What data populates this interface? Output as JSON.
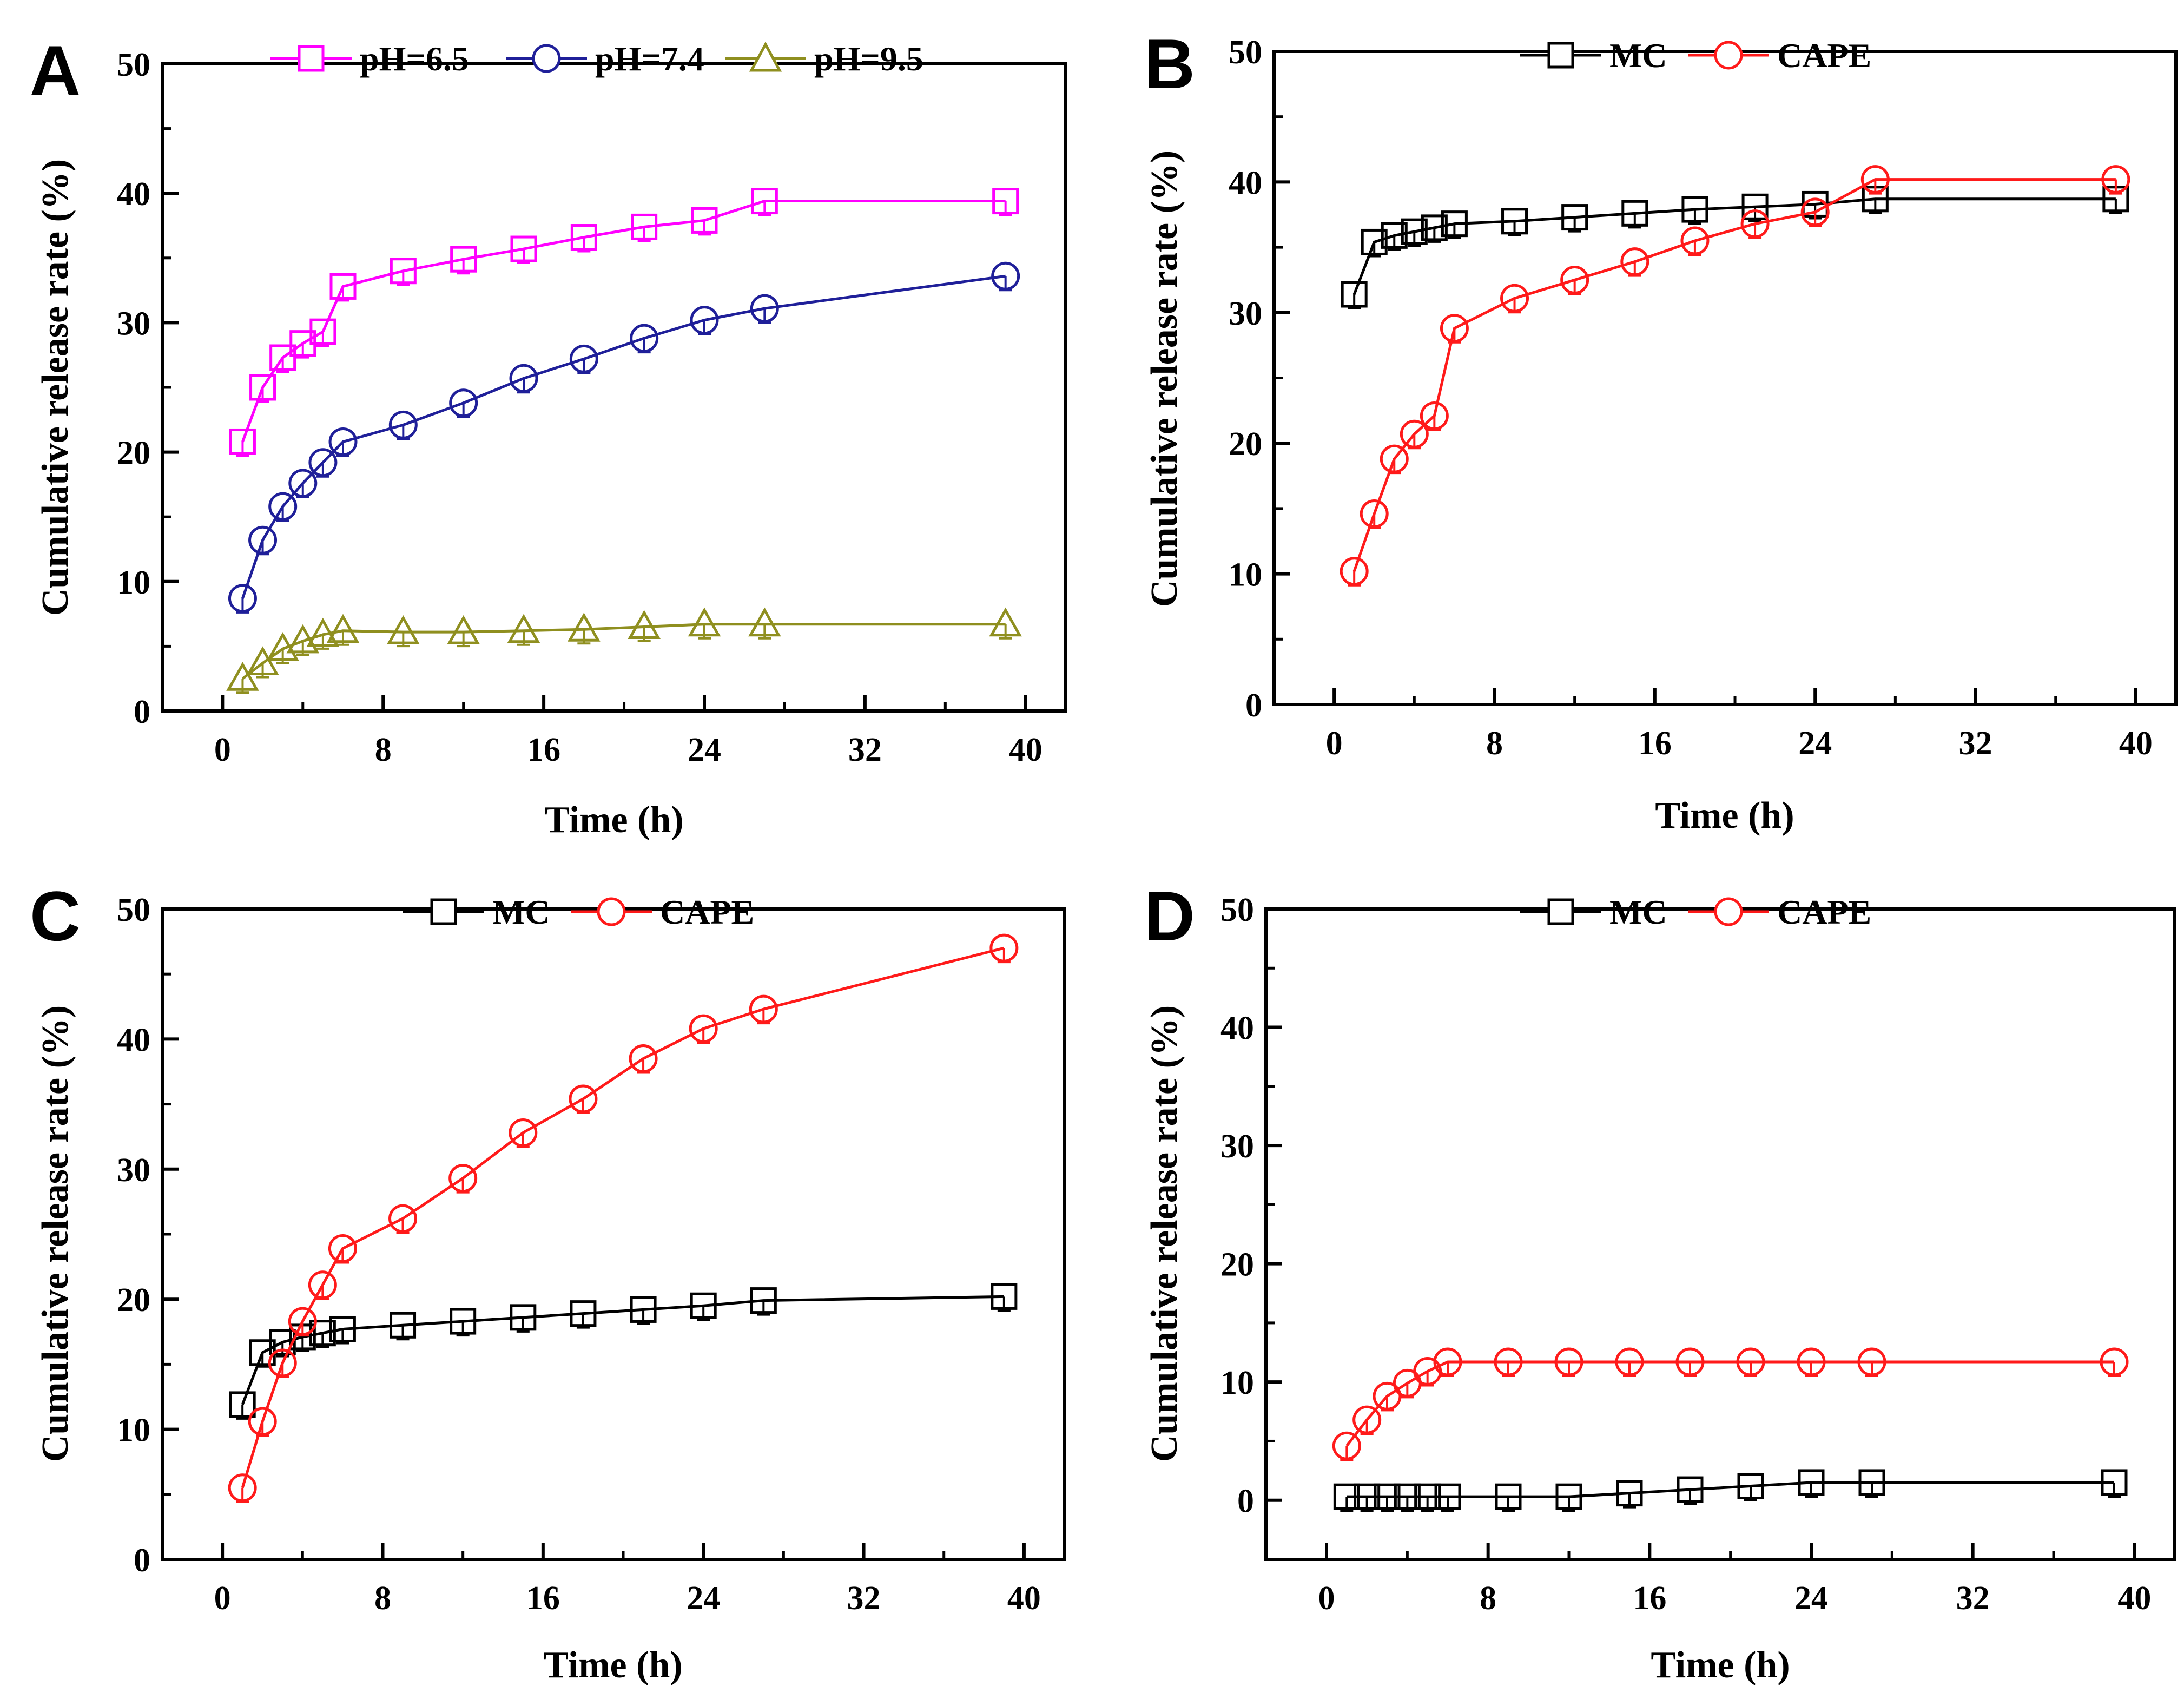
{
  "chart_data": [
    {
      "panel": "A",
      "type": "line",
      "xlabel": "Time (h)",
      "ylabel": "Cumulative release rate (%)",
      "xlim": [
        -3,
        42
      ],
      "ylim": [
        0,
        50
      ],
      "xticks": [
        0,
        8,
        16,
        24,
        32,
        40
      ],
      "yticks": [
        0,
        10,
        20,
        30,
        40,
        50
      ],
      "x": [
        1,
        2,
        3,
        4,
        5,
        6,
        9,
        12,
        15,
        18,
        21,
        24,
        27,
        39
      ],
      "series": [
        {
          "name": "pH=6.5",
          "color": "#ff00ff",
          "marker": "square",
          "values": [
            20.8,
            25.0,
            27.3,
            28.4,
            29.3,
            32.8,
            34.0,
            34.9,
            35.7,
            36.6,
            37.4,
            37.9,
            39.4,
            39.4
          ]
        },
        {
          "name": "pH=7.4",
          "color": "#1f1f99",
          "marker": "circle",
          "values": [
            8.7,
            13.2,
            15.8,
            17.6,
            19.2,
            20.8,
            22.1,
            23.8,
            25.7,
            27.2,
            28.8,
            30.2,
            31.1,
            33.6
          ]
        },
        {
          "name": "pH=9.5",
          "color": "#8f8f1f",
          "marker": "triangle",
          "values": [
            2.5,
            3.7,
            4.8,
            5.4,
            5.9,
            6.2,
            6.1,
            6.1,
            6.2,
            6.3,
            6.5,
            6.7,
            6.7,
            6.7
          ]
        }
      ]
    },
    {
      "panel": "B",
      "type": "line",
      "xlabel": "Time (h)",
      "ylabel": "Cumulative release rate (%)",
      "xlim": [
        -3,
        42
      ],
      "ylim": [
        0,
        50
      ],
      "xticks": [
        0,
        8,
        16,
        24,
        32,
        40
      ],
      "yticks": [
        0,
        10,
        20,
        30,
        40,
        50
      ],
      "x": [
        1,
        2,
        3,
        4,
        5,
        6,
        9,
        12,
        15,
        18,
        21,
        24,
        27,
        39
      ],
      "series": [
        {
          "name": "MC",
          "color": "#000000",
          "marker": "square",
          "values": [
            31.4,
            35.4,
            35.9,
            36.2,
            36.5,
            36.8,
            37.0,
            37.3,
            37.6,
            37.9,
            38.1,
            38.3,
            38.7,
            38.7
          ]
        },
        {
          "name": "CAPE",
          "color": "#ff1a1a",
          "marker": "circle",
          "values": [
            10.2,
            14.6,
            18.8,
            20.7,
            22.1,
            28.8,
            31.1,
            32.5,
            33.9,
            35.5,
            36.8,
            37.7,
            40.2,
            40.2
          ]
        }
      ]
    },
    {
      "panel": "C",
      "type": "line",
      "xlabel": "Time (h)",
      "ylabel": "Cumulative release rate (%)",
      "xlim": [
        -3,
        42
      ],
      "ylim": [
        0,
        50
      ],
      "xticks": [
        0,
        8,
        16,
        24,
        32,
        40
      ],
      "yticks": [
        0,
        10,
        20,
        30,
        40,
        50
      ],
      "x": [
        1,
        2,
        3,
        4,
        5,
        6,
        9,
        12,
        15,
        18,
        21,
        24,
        27,
        39
      ],
      "series": [
        {
          "name": "MC",
          "color": "#000000",
          "marker": "square",
          "values": [
            11.9,
            15.9,
            16.7,
            17.1,
            17.4,
            17.7,
            18.0,
            18.3,
            18.6,
            18.9,
            19.2,
            19.5,
            19.9,
            20.2
          ]
        },
        {
          "name": "CAPE",
          "color": "#ff1a1a",
          "marker": "circle",
          "values": [
            5.5,
            10.6,
            15.1,
            18.3,
            21.1,
            23.9,
            26.2,
            29.3,
            32.8,
            35.4,
            38.5,
            40.8,
            42.3,
            47.0
          ]
        }
      ]
    },
    {
      "panel": "D",
      "type": "line",
      "xlabel": "Time (h)",
      "ylabel": "Cumulative release rate (%)",
      "xlim": [
        -3,
        42
      ],
      "ylim": [
        -5,
        50
      ],
      "xticks": [
        0,
        8,
        16,
        24,
        32,
        40
      ],
      "yticks": [
        0,
        10,
        20,
        30,
        40,
        50
      ],
      "x": [
        1,
        2,
        3,
        4,
        5,
        6,
        9,
        12,
        15,
        18,
        21,
        24,
        27,
        39
      ],
      "series": [
        {
          "name": "MC",
          "color": "#000000",
          "marker": "square",
          "values": [
            0.3,
            0.3,
            0.3,
            0.3,
            0.3,
            0.3,
            0.3,
            0.3,
            0.6,
            0.9,
            1.2,
            1.5,
            1.5,
            1.5
          ]
        },
        {
          "name": "CAPE",
          "color": "#ff1a1a",
          "marker": "circle",
          "values": [
            4.6,
            6.8,
            8.8,
            9.9,
            10.9,
            11.7,
            11.7,
            11.7,
            11.7,
            11.7,
            11.7,
            11.7,
            11.7,
            11.7
          ]
        }
      ]
    }
  ]
}
